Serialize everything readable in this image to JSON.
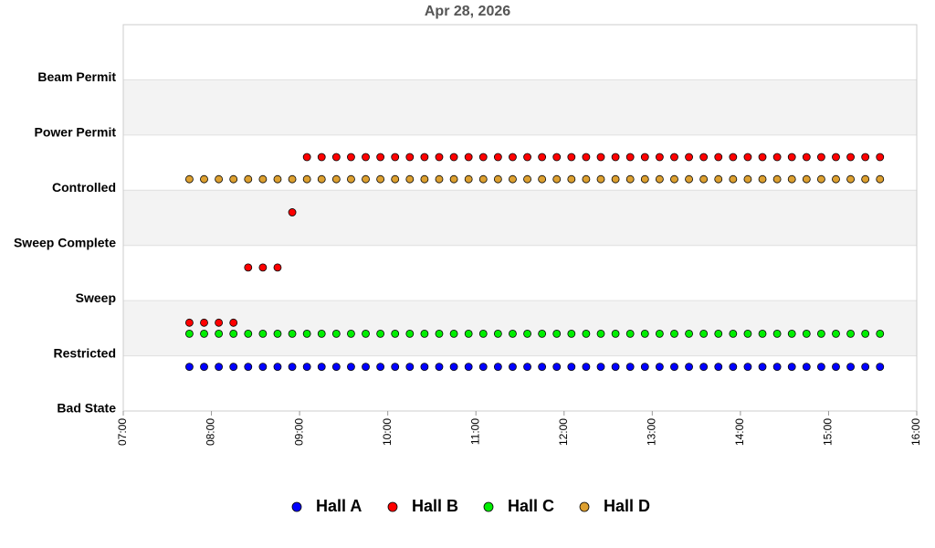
{
  "chart_data": {
    "type": "scatter",
    "title": "Apr 28, 2026",
    "x": [
      "07:45",
      "07:55",
      "08:05",
      "08:15",
      "08:25",
      "08:35",
      "08:45",
      "08:55",
      "09:05",
      "09:15",
      "09:25",
      "09:35",
      "09:45",
      "09:55",
      "10:05",
      "10:15",
      "10:25",
      "10:35",
      "10:45",
      "10:55",
      "11:05",
      "11:15",
      "11:25",
      "11:35",
      "11:45",
      "11:55",
      "12:05",
      "12:15",
      "12:25",
      "12:35",
      "12:45",
      "12:55",
      "13:05",
      "13:15",
      "13:25",
      "13:35",
      "13:45",
      "13:55",
      "14:05",
      "14:15",
      "14:25",
      "14:35",
      "14:45",
      "14:55",
      "15:05",
      "15:15",
      "15:25",
      "15:35"
    ],
    "xlim": [
      "07:00",
      "16:00"
    ],
    "xticks": [
      "07:00",
      "08:00",
      "09:00",
      "10:00",
      "11:00",
      "12:00",
      "13:00",
      "14:00",
      "15:00",
      "16:00"
    ],
    "ylim": [
      0,
      7
    ],
    "yticks": [
      {
        "value": 0,
        "label": "Bad State"
      },
      {
        "value": 1,
        "label": "Restricted"
      },
      {
        "value": 2,
        "label": "Sweep"
      },
      {
        "value": 3,
        "label": "Sweep Complete"
      },
      {
        "value": 4,
        "label": "Controlled"
      },
      {
        "value": 5,
        "label": "Power Permit"
      },
      {
        "value": 6,
        "label": "Beam Permit"
      }
    ],
    "grid": true,
    "legend": "bottom",
    "series": [
      {
        "name": "Hall A",
        "color": "#0000ff",
        "values": [
          0.8,
          0.8,
          0.8,
          0.8,
          0.8,
          0.8,
          0.8,
          0.8,
          0.8,
          0.8,
          0.8,
          0.8,
          0.8,
          0.8,
          0.8,
          0.8,
          0.8,
          0.8,
          0.8,
          0.8,
          0.8,
          0.8,
          0.8,
          0.8,
          0.8,
          0.8,
          0.8,
          0.8,
          0.8,
          0.8,
          0.8,
          0.8,
          0.8,
          0.8,
          0.8,
          0.8,
          0.8,
          0.8,
          0.8,
          0.8,
          0.8,
          0.8,
          0.8,
          0.8,
          0.8,
          0.8,
          0.8,
          0.8
        ]
      },
      {
        "name": "Hall B",
        "color": "#ff0000",
        "values": [
          1.6,
          1.6,
          1.6,
          1.6,
          2.6,
          2.6,
          2.6,
          3.6,
          4.6,
          4.6,
          4.6,
          4.6,
          4.6,
          4.6,
          4.6,
          4.6,
          4.6,
          4.6,
          4.6,
          4.6,
          4.6,
          4.6,
          4.6,
          4.6,
          4.6,
          4.6,
          4.6,
          4.6,
          4.6,
          4.6,
          4.6,
          4.6,
          4.6,
          4.6,
          4.6,
          4.6,
          4.6,
          4.6,
          4.6,
          4.6,
          4.6,
          4.6,
          4.6,
          4.6,
          4.6,
          4.6,
          4.6,
          4.6
        ]
      },
      {
        "name": "Hall C",
        "color": "#00ee00",
        "values": [
          1.4,
          1.4,
          1.4,
          1.4,
          1.4,
          1.4,
          1.4,
          1.4,
          1.4,
          1.4,
          1.4,
          1.4,
          1.4,
          1.4,
          1.4,
          1.4,
          1.4,
          1.4,
          1.4,
          1.4,
          1.4,
          1.4,
          1.4,
          1.4,
          1.4,
          1.4,
          1.4,
          1.4,
          1.4,
          1.4,
          1.4,
          1.4,
          1.4,
          1.4,
          1.4,
          1.4,
          1.4,
          1.4,
          1.4,
          1.4,
          1.4,
          1.4,
          1.4,
          1.4,
          1.4,
          1.4,
          1.4,
          1.4
        ]
      },
      {
        "name": "Hall D",
        "color": "#dda030",
        "values": [
          4.2,
          4.2,
          4.2,
          4.2,
          4.2,
          4.2,
          4.2,
          4.2,
          4.2,
          4.2,
          4.2,
          4.2,
          4.2,
          4.2,
          4.2,
          4.2,
          4.2,
          4.2,
          4.2,
          4.2,
          4.2,
          4.2,
          4.2,
          4.2,
          4.2,
          4.2,
          4.2,
          4.2,
          4.2,
          4.2,
          4.2,
          4.2,
          4.2,
          4.2,
          4.2,
          4.2,
          4.2,
          4.2,
          4.2,
          4.2,
          4.2,
          4.2,
          4.2,
          4.2,
          4.2,
          4.2,
          4.2,
          4.2
        ]
      }
    ]
  }
}
